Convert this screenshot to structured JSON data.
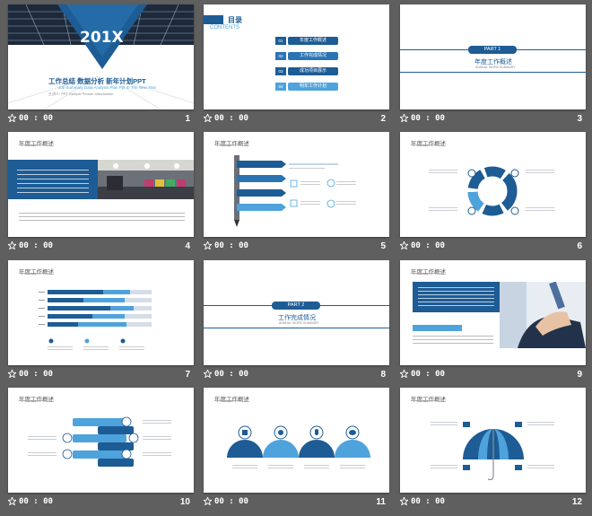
{
  "colors": {
    "accent": "#1d5c95",
    "accent_light": "#4ea3dc",
    "background": "#5f5f5f"
  },
  "slides": [
    {
      "num": "1",
      "time": "00 : 00",
      "year": "201X",
      "title": "工作总结  数据分析  新年计划PPT",
      "subtitle": "Job Summary Data Analysis Plan Ppt In The New Year",
      "author": "主讲人: PPT Sample Person Introduction"
    },
    {
      "num": "2",
      "time": "00 : 00",
      "heading": "目录",
      "heading_en": "CONTENTS",
      "items": [
        {
          "no": "01",
          "label": "年度工作概述"
        },
        {
          "no": "02",
          "label": "工作完成情况"
        },
        {
          "no": "03",
          "label": "成功项目展示"
        },
        {
          "no": "04",
          "label": "明年工作计划"
        }
      ]
    },
    {
      "num": "3",
      "time": "00 : 00",
      "part": "PART  1",
      "title": "年度工作概述",
      "subtitle": "ANNUAL WORK SUMMARY"
    },
    {
      "num": "4",
      "time": "00 : 00",
      "title": "年度工作概述"
    },
    {
      "num": "5",
      "time": "00 : 00",
      "title": "年度工作概述"
    },
    {
      "num": "6",
      "time": "00 : 00",
      "title": "年度工作概述"
    },
    {
      "num": "7",
      "time": "00 : 00",
      "title": "年度工作概述"
    },
    {
      "num": "8",
      "time": "00 : 00",
      "part": "PART  2",
      "title": "工作完成情况",
      "subtitle": "ANNUAL WORK SUMMARY"
    },
    {
      "num": "9",
      "time": "00 : 00",
      "title": "年度工作概述"
    },
    {
      "num": "10",
      "time": "00 : 00",
      "title": "年度工作概述"
    },
    {
      "num": "11",
      "time": "00 : 00",
      "title": "年度工作概述"
    },
    {
      "num": "12",
      "time": "00 : 00",
      "title": "年度工作概述"
    }
  ]
}
